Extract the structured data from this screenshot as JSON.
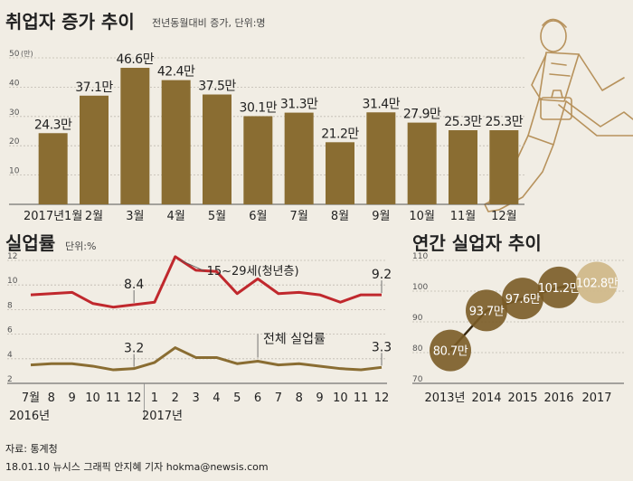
{
  "colors": {
    "bar": "#8a6d32",
    "grid": "#bfbab0",
    "youth_line": "#c0282d",
    "total_line": "#8a6d32",
    "bubble": "#7a5b26",
    "bubble_light": "#d0b98a",
    "background": "#f1ede4"
  },
  "chart_data": [
    {
      "type": "bar",
      "title": "취업자 증가 추이",
      "subtitle": "전년동월대비 증가, 단위:명",
      "unit_label": "(만)",
      "categories": [
        "2017년1월",
        "2월",
        "3월",
        "4월",
        "5월",
        "6월",
        "7월",
        "8월",
        "9월",
        "10월",
        "11월",
        "12월"
      ],
      "values": [
        24.3,
        37.1,
        46.6,
        42.4,
        37.5,
        30.1,
        31.3,
        21.2,
        31.4,
        27.9,
        25.3,
        25.3
      ],
      "value_labels": [
        "24.3만",
        "37.1만",
        "46.6만",
        "42.4만",
        "37.5만",
        "30.1만",
        "31.3만",
        "21.2만",
        "31.4만",
        "27.9만",
        "25.3만",
        "25.3만"
      ],
      "ylim": [
        0,
        50
      ],
      "yticks": [
        "50",
        "40",
        "30",
        "20",
        "10"
      ],
      "grid": true
    },
    {
      "type": "line",
      "title": "실업률",
      "subtitle": "단위:%",
      "x_labels": [
        "7월",
        "8",
        "9",
        "10",
        "11",
        "12",
        "1",
        "2",
        "3",
        "4",
        "5",
        "6",
        "7",
        "8",
        "9",
        "10",
        "11",
        "12"
      ],
      "year_labels": [
        "2016년",
        "2017년"
      ],
      "ylim": [
        2,
        12
      ],
      "yticks": [
        "12",
        "10",
        "8",
        "6",
        "4",
        "2"
      ],
      "grid": true,
      "series": [
        {
          "name": "15~29세(청년층)",
          "values": [
            9.2,
            9.3,
            9.4,
            8.5,
            8.2,
            8.4,
            8.6,
            12.3,
            11.2,
            11.1,
            9.3,
            10.5,
            9.3,
            9.4,
            9.2,
            8.6,
            9.2,
            9.2
          ],
          "labels": [
            {
              "index": 5,
              "text": "8.4"
            },
            {
              "index": 17,
              "text": "9.2"
            }
          ]
        },
        {
          "name": "전체 실업률",
          "values": [
            3.5,
            3.6,
            3.6,
            3.4,
            3.1,
            3.2,
            3.7,
            4.9,
            4.1,
            4.1,
            3.6,
            3.8,
            3.5,
            3.6,
            3.4,
            3.2,
            3.1,
            3.3
          ],
          "labels": [
            {
              "index": 5,
              "text": "3.2"
            },
            {
              "index": 17,
              "text": "3.3"
            }
          ]
        }
      ]
    },
    {
      "type": "scatter",
      "title": "연간 실업자 추이",
      "categories": [
        "2013년",
        "2014",
        "2015",
        "2016",
        "2017"
      ],
      "values": [
        80.7,
        93.7,
        97.6,
        101.2,
        102.8
      ],
      "value_labels": [
        "80.7만",
        "93.7만",
        "97.6만",
        "101.2만",
        "102.8만"
      ],
      "ylim": [
        70,
        110
      ],
      "yticks": [
        "110",
        "100",
        "90",
        "80",
        "70"
      ],
      "grid": true
    }
  ],
  "footer": {
    "source": "자료: 통계청",
    "credit": "18.01.10 뉴시스 그래픽 안지혜 기자 hokma@newsis.com"
  }
}
